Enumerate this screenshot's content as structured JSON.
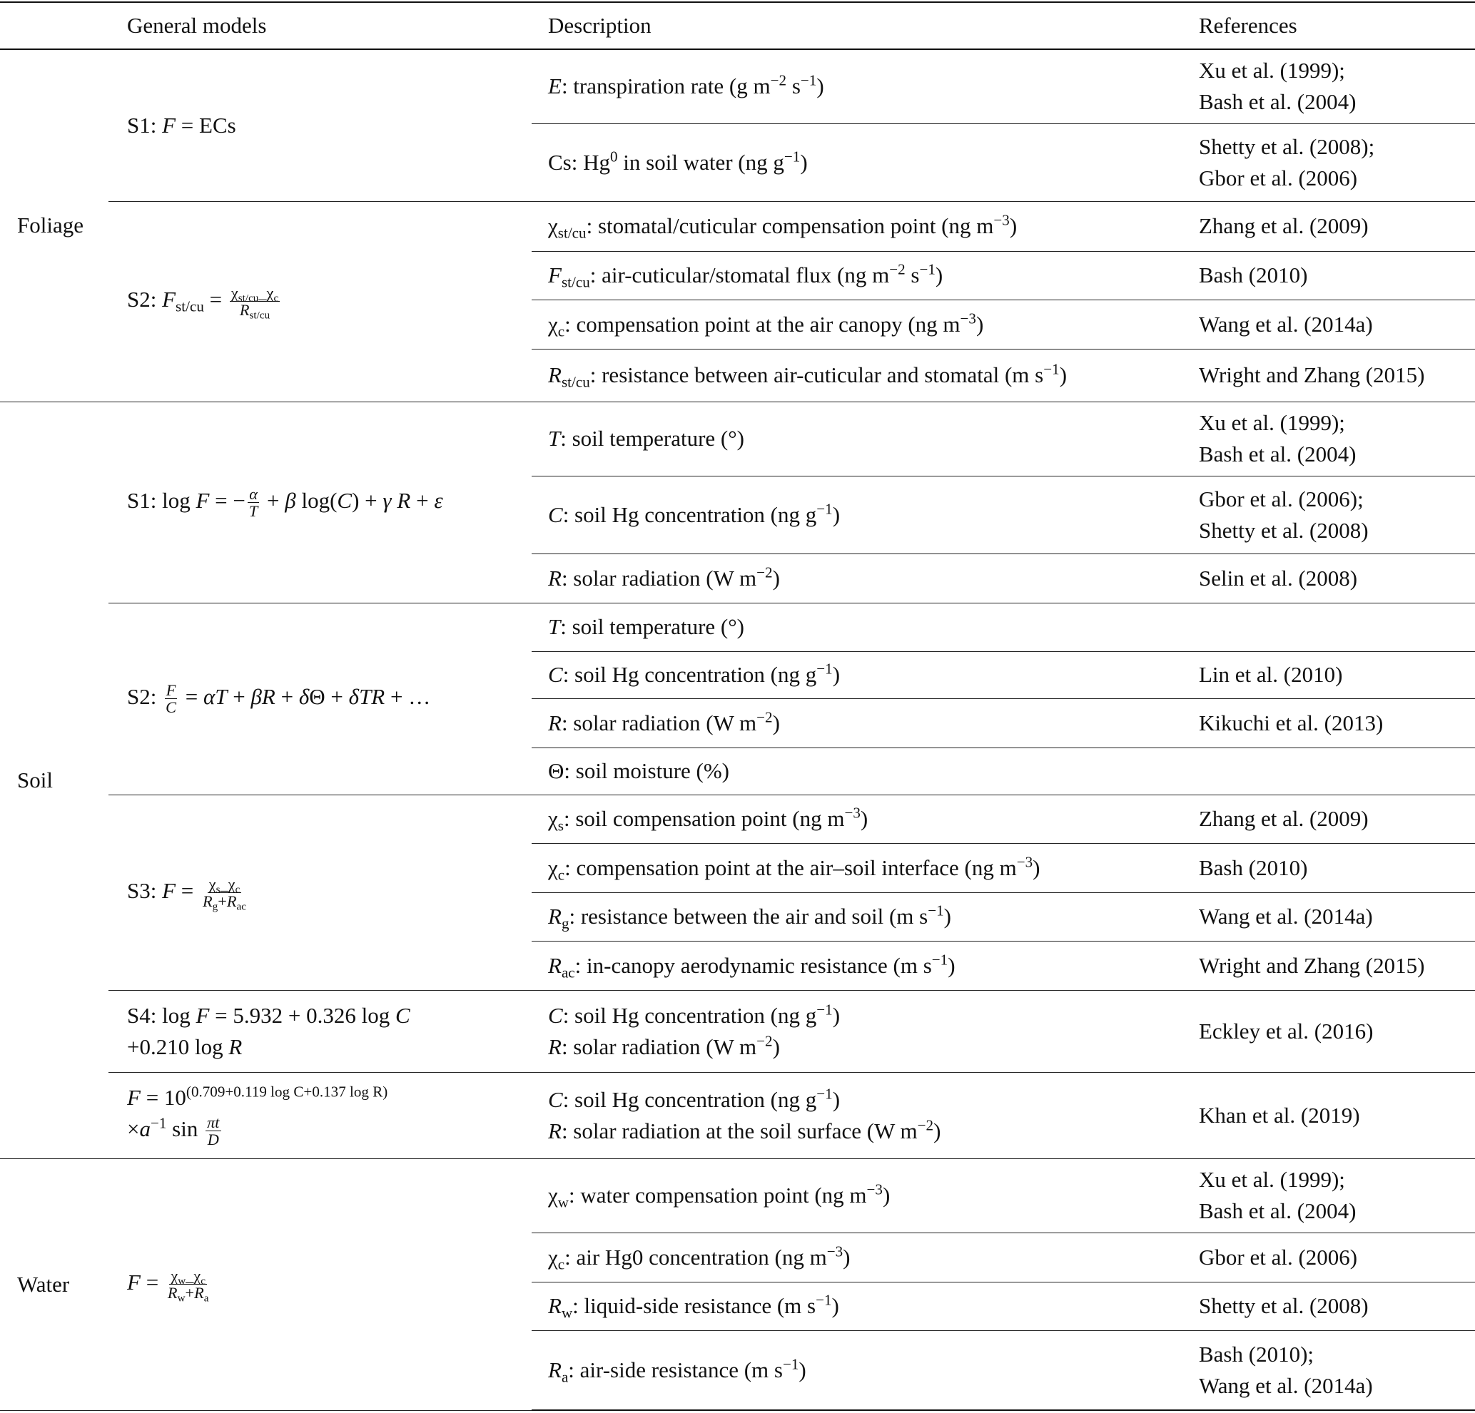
{
  "header": {
    "col1": "",
    "col2": "General models",
    "col3": "Description",
    "col4": "References"
  },
  "groups": [
    {
      "name": "Foliage",
      "models": [
        {
          "formula": [
            {
              "t": "S1: "
            },
            {
              "i": "F"
            },
            {
              "t": " = ECs"
            }
          ],
          "rows": [
            {
              "desc": [
                [
                  {
                    "i": "E"
                  },
                  {
                    "t": ": transpiration rate (g m"
                  },
                  {
                    "sup": "−2"
                  },
                  {
                    "t": " s"
                  },
                  {
                    "sup": "−1"
                  },
                  {
                    "t": ")"
                  }
                ]
              ],
              "refs": [
                "Xu et al. (1999);",
                "Bash et al. (2004)"
              ]
            },
            {
              "desc": [
                [
                  {
                    "t": "Cs: Hg"
                  },
                  {
                    "sup": "0"
                  },
                  {
                    "t": " in soil water (ng g"
                  },
                  {
                    "sup": "−1"
                  },
                  {
                    "t": ")"
                  }
                ]
              ],
              "refs": [
                "Shetty et al. (2008);",
                "Gbor et al. (2006)"
              ]
            }
          ]
        },
        {
          "formula": [
            {
              "t": "S2: "
            },
            {
              "i": "F"
            },
            {
              "sub": "st/cu"
            },
            {
              "t": " = "
            },
            {
              "frac": [
                [
                  {
                    "t": "χ"
                  },
                  {
                    "sub": "st/cu"
                  },
                  {
                    "t": "_χ"
                  },
                  {
                    "sub": "c"
                  }
                ],
                [
                  {
                    "i": "R"
                  },
                  {
                    "sub": "st/cu"
                  }
                ]
              ]
            }
          ],
          "rows": [
            {
              "desc": [
                [
                  {
                    "t": "χ"
                  },
                  {
                    "sub": "st/cu"
                  },
                  {
                    "t": ": stomatal/cuticular compensation point (ng m"
                  },
                  {
                    "sup": "−3"
                  },
                  {
                    "t": ")"
                  }
                ]
              ],
              "refs": [
                "Zhang et al. (2009)"
              ]
            },
            {
              "desc": [
                [
                  {
                    "i": "F"
                  },
                  {
                    "sub": "st/cu"
                  },
                  {
                    "t": ": air-cuticular/stomatal flux (ng m"
                  },
                  {
                    "sup": "−2"
                  },
                  {
                    "t": " s"
                  },
                  {
                    "sup": "−1"
                  },
                  {
                    "t": ")"
                  }
                ]
              ],
              "refs": [
                "Bash (2010)"
              ]
            },
            {
              "desc": [
                [
                  {
                    "t": "χ"
                  },
                  {
                    "sub": "c"
                  },
                  {
                    "t": ": compensation point at the air canopy (ng m"
                  },
                  {
                    "sup": "−3"
                  },
                  {
                    "t": ")"
                  }
                ]
              ],
              "refs": [
                "Wang et al. (2014a)"
              ]
            },
            {
              "desc": [
                [
                  {
                    "i": "R"
                  },
                  {
                    "sub": "st/cu"
                  },
                  {
                    "t": ": resistance between air-cuticular and stomatal (m s"
                  },
                  {
                    "sup": "−1"
                  },
                  {
                    "t": ")"
                  }
                ]
              ],
              "refs": [
                "Wright and Zhang (2015)"
              ]
            }
          ]
        }
      ]
    },
    {
      "name": "Soil",
      "models": [
        {
          "formula": [
            {
              "t": "S1: log "
            },
            {
              "i": "F"
            },
            {
              "t": " = −"
            },
            {
              "frac": [
                [
                  {
                    "i": "α"
                  }
                ],
                [
                  {
                    "i": "T"
                  }
                ]
              ]
            },
            {
              "t": " + "
            },
            {
              "i": "β"
            },
            {
              "t": " log("
            },
            {
              "i": "C"
            },
            {
              "t": ") + "
            },
            {
              "i": "γ R"
            },
            {
              "t": " + "
            },
            {
              "i": "ε"
            }
          ],
          "rows": [
            {
              "desc": [
                [
                  {
                    "i": "T"
                  },
                  {
                    "t": ": soil temperature (°)"
                  }
                ]
              ],
              "refs": [
                "Xu et al. (1999);",
                "Bash et al. (2004)"
              ]
            },
            {
              "desc": [
                [
                  {
                    "i": "C"
                  },
                  {
                    "t": ": soil Hg concentration (ng g"
                  },
                  {
                    "sup": "−1"
                  },
                  {
                    "t": ")"
                  }
                ]
              ],
              "refs": [
                "Gbor et al. (2006);",
                "Shetty et al. (2008)"
              ]
            },
            {
              "desc": [
                [
                  {
                    "i": "R"
                  },
                  {
                    "t": ": solar radiation (W m"
                  },
                  {
                    "sup": "−2"
                  },
                  {
                    "t": ")"
                  }
                ]
              ],
              "refs": [
                "Selin et al. (2008)"
              ]
            }
          ]
        },
        {
          "formula": [
            {
              "t": "S2: "
            },
            {
              "frac": [
                [
                  {
                    "i": "F"
                  }
                ],
                [
                  {
                    "i": "C"
                  }
                ]
              ]
            },
            {
              "t": " = "
            },
            {
              "i": "αT"
            },
            {
              "t": " + "
            },
            {
              "i": "βR"
            },
            {
              "t": " + "
            },
            {
              "i": "δ"
            },
            {
              "t": "Θ + "
            },
            {
              "i": "δTR"
            },
            {
              "t": " + …"
            }
          ],
          "rows": [
            {
              "desc": [
                [
                  {
                    "i": "T"
                  },
                  {
                    "t": ": soil temperature (°)"
                  }
                ]
              ],
              "refs": []
            },
            {
              "desc": [
                [
                  {
                    "i": "C"
                  },
                  {
                    "t": ": soil Hg concentration (ng g"
                  },
                  {
                    "sup": "−1"
                  },
                  {
                    "t": ")"
                  }
                ]
              ],
              "refs": [
                "Lin et al. (2010)"
              ]
            },
            {
              "desc": [
                [
                  {
                    "i": "R"
                  },
                  {
                    "t": ": solar radiation (W m"
                  },
                  {
                    "sup": "−2"
                  },
                  {
                    "t": ")"
                  }
                ]
              ],
              "refs": [
                "Kikuchi et al. (2013)"
              ]
            },
            {
              "desc": [
                [
                  {
                    "t": "Θ: soil moisture (%)"
                  }
                ]
              ],
              "refs": []
            }
          ]
        },
        {
          "formula": [
            {
              "t": "S3: "
            },
            {
              "i": "F"
            },
            {
              "t": " = "
            },
            {
              "frac": [
                [
                  {
                    "t": "χ"
                  },
                  {
                    "sub": "s"
                  },
                  {
                    "t": "_χ"
                  },
                  {
                    "sub": "c"
                  }
                ],
                [
                  {
                    "i": "R"
                  },
                  {
                    "sub": "g"
                  },
                  {
                    "t": "+"
                  },
                  {
                    "i": "R"
                  },
                  {
                    "sub": "ac"
                  }
                ]
              ]
            }
          ],
          "rows": [
            {
              "desc": [
                [
                  {
                    "t": "χ"
                  },
                  {
                    "sub": "s"
                  },
                  {
                    "t": ": soil compensation point (ng m"
                  },
                  {
                    "sup": "−3"
                  },
                  {
                    "t": ")"
                  }
                ]
              ],
              "refs": [
                "Zhang et al. (2009)"
              ]
            },
            {
              "desc": [
                [
                  {
                    "t": "χ"
                  },
                  {
                    "sub": "c"
                  },
                  {
                    "t": ": compensation point at the air–soil interface (ng m"
                  },
                  {
                    "sup": "−3"
                  },
                  {
                    "t": ")"
                  }
                ]
              ],
              "refs": [
                "Bash (2010)"
              ]
            },
            {
              "desc": [
                [
                  {
                    "i": "R"
                  },
                  {
                    "sub": "g"
                  },
                  {
                    "t": ": resistance between the air and soil (m s"
                  },
                  {
                    "sup": "−1"
                  },
                  {
                    "t": ")"
                  }
                ]
              ],
              "refs": [
                "Wang et al. (2014a)"
              ]
            },
            {
              "desc": [
                [
                  {
                    "i": "R"
                  },
                  {
                    "sub": "ac"
                  },
                  {
                    "t": ": in-canopy aerodynamic resistance (m s"
                  },
                  {
                    "sup": "−1"
                  },
                  {
                    "t": ")"
                  }
                ]
              ],
              "refs": [
                "Wright and Zhang (2015)"
              ]
            }
          ]
        },
        {
          "formula": [
            {
              "t": "S4: log "
            },
            {
              "i": "F"
            },
            {
              "t": " = 5.932 + 0.326 log "
            },
            {
              "i": "C"
            },
            {
              "br": true
            },
            {
              "t": "+0.210 log "
            },
            {
              "i": "R"
            }
          ],
          "rows": [
            {
              "desc": [
                [
                  {
                    "i": "C"
                  },
                  {
                    "t": ": soil Hg concentration (ng g"
                  },
                  {
                    "sup": "−1"
                  },
                  {
                    "t": ")"
                  }
                ],
                [
                  {
                    "i": "R"
                  },
                  {
                    "t": ": solar radiation (W m"
                  },
                  {
                    "sup": "−2"
                  },
                  {
                    "t": ")"
                  }
                ]
              ],
              "refs": [
                "Eckley et al. (2016)"
              ]
            }
          ]
        },
        {
          "formula": [
            {
              "i": "F"
            },
            {
              "t": " = 10"
            },
            {
              "sup": "(0.709+0.119 log C+0.137 log R)"
            },
            {
              "br": true
            },
            {
              "t": "×"
            },
            {
              "i": "a"
            },
            {
              "sup": "−1"
            },
            {
              "t": " sin "
            },
            {
              "frac": [
                [
                  {
                    "i": "πt"
                  }
                ],
                [
                  {
                    "i": "D"
                  }
                ]
              ]
            }
          ],
          "rows": [
            {
              "desc": [
                [
                  {
                    "i": "C"
                  },
                  {
                    "t": ": soil Hg concentration (ng g"
                  },
                  {
                    "sup": "−1"
                  },
                  {
                    "t": ")"
                  }
                ],
                [
                  {
                    "i": "R"
                  },
                  {
                    "t": ": solar radiation at the soil surface (W m"
                  },
                  {
                    "sup": "−2"
                  },
                  {
                    "t": ")"
                  }
                ]
              ],
              "refs": [
                "Khan et al. (2019)"
              ]
            }
          ]
        }
      ]
    },
    {
      "name": "Water",
      "models": [
        {
          "formula": [
            {
              "i": "F"
            },
            {
              "t": " = "
            },
            {
              "frac": [
                [
                  {
                    "t": "χ"
                  },
                  {
                    "sub": "w"
                  },
                  {
                    "t": "_χ"
                  },
                  {
                    "sub": "c"
                  }
                ],
                [
                  {
                    "i": "R"
                  },
                  {
                    "sub": "w"
                  },
                  {
                    "t": "+"
                  },
                  {
                    "i": "R"
                  },
                  {
                    "sub": "a"
                  }
                ]
              ]
            }
          ],
          "rows": [
            {
              "desc": [
                [
                  {
                    "t": "χ"
                  },
                  {
                    "sub": "w"
                  },
                  {
                    "t": ": water compensation point (ng m"
                  },
                  {
                    "sup": "−3"
                  },
                  {
                    "t": ")"
                  }
                ]
              ],
              "refs": [
                "Xu et al. (1999);",
                "Bash et al. (2004)"
              ]
            },
            {
              "desc": [
                [
                  {
                    "t": "χ"
                  },
                  {
                    "sub": "c"
                  },
                  {
                    "t": ": air Hg0 concentration (ng m"
                  },
                  {
                    "sup": "−3"
                  },
                  {
                    "t": ")"
                  }
                ]
              ],
              "refs": [
                "Gbor et al. (2006)"
              ]
            },
            {
              "desc": [
                [
                  {
                    "i": "R"
                  },
                  {
                    "sub": "w"
                  },
                  {
                    "t": ": liquid-side resistance (m s"
                  },
                  {
                    "sup": "−1"
                  },
                  {
                    "t": ")"
                  }
                ]
              ],
              "refs": [
                "Shetty et al. (2008)"
              ]
            },
            {
              "desc": [
                [
                  {
                    "i": "R"
                  },
                  {
                    "sub": "a"
                  },
                  {
                    "t": ": air-side resistance (m s"
                  },
                  {
                    "sup": "−1"
                  },
                  {
                    "t": ")"
                  }
                ]
              ],
              "refs": [
                "Bash (2010);",
                "Wang et al. (2014a)"
              ]
            }
          ]
        }
      ]
    }
  ]
}
